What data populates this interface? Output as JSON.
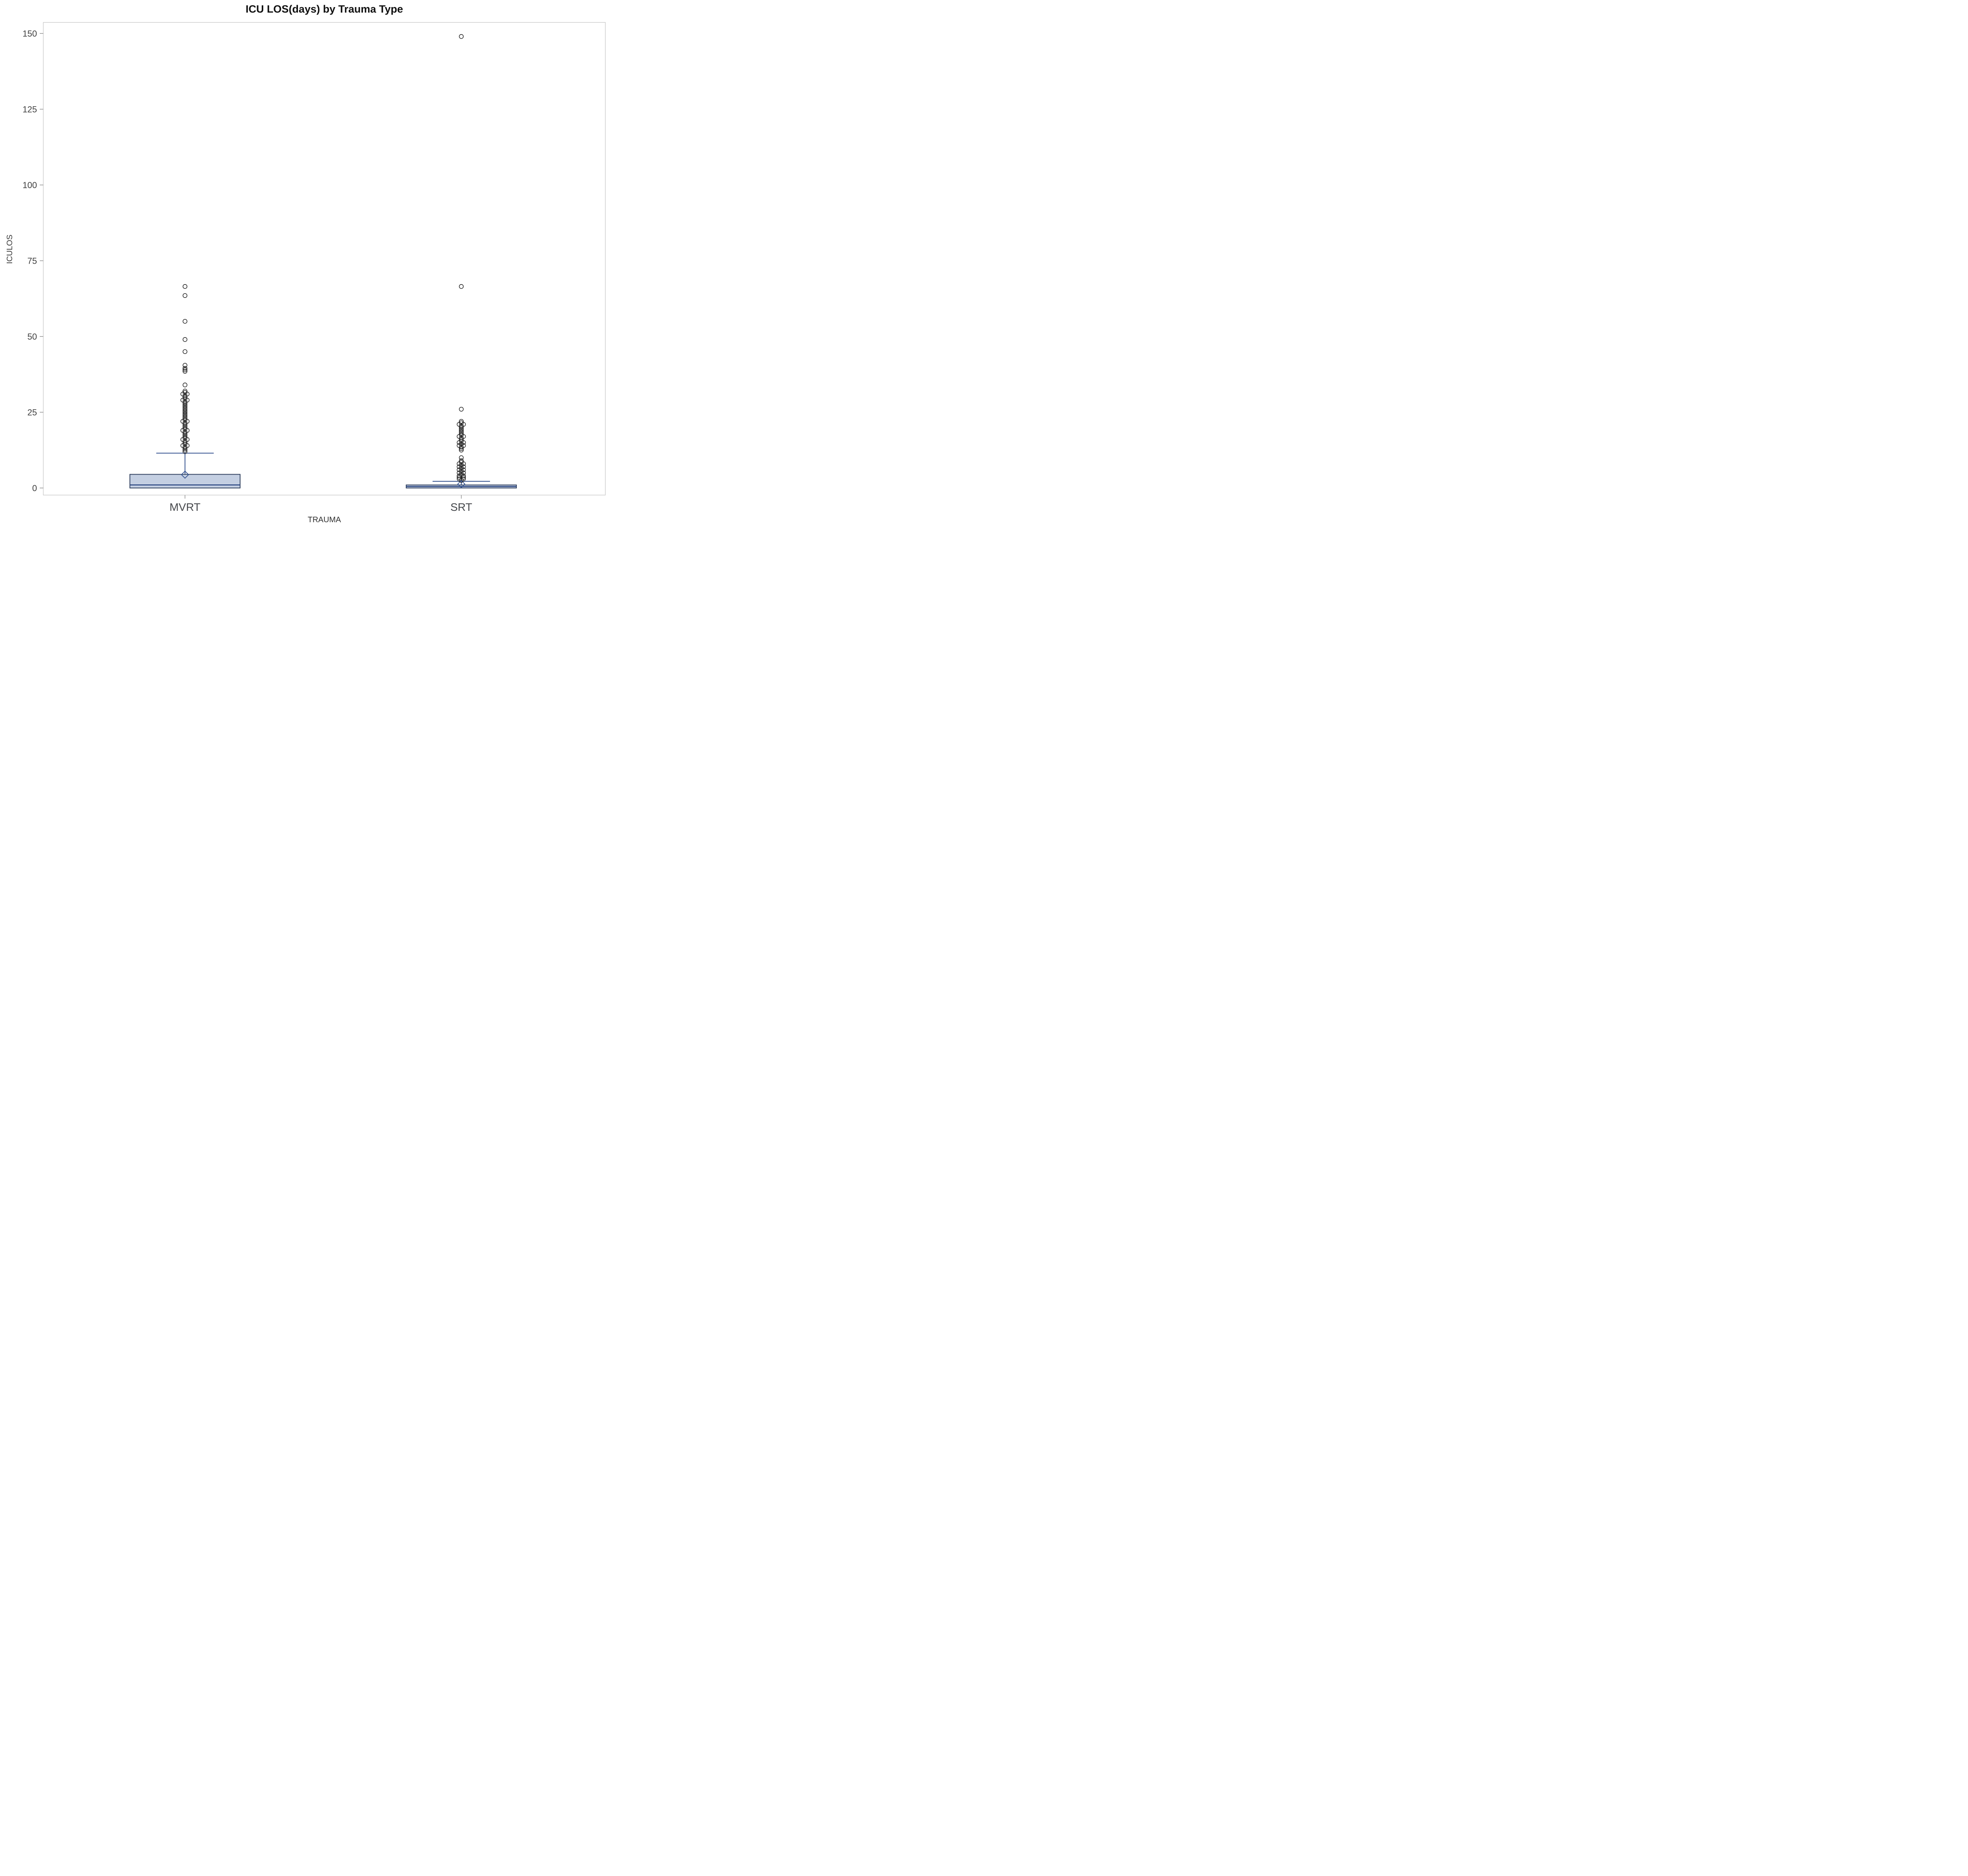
{
  "chart_data": {
    "type": "boxplot",
    "title": "ICU LOS(days) by Trauma Type",
    "xlabel": "TRAUMA",
    "ylabel": "ICULOS",
    "ylim": [
      0,
      150
    ],
    "yticks": [
      0,
      25,
      50,
      75,
      100,
      125,
      150
    ],
    "grid": false,
    "legend": "none",
    "categories": [
      "MVRT",
      "SRT"
    ],
    "series": [
      {
        "name": "MVRT",
        "q1": 0,
        "median": 1,
        "q3": 4.5,
        "whisker_low": 0,
        "whisker_high": 11.5,
        "mean": 4.4,
        "outliers": [
          66.5,
          63.5,
          55,
          49,
          45,
          40.5,
          39.5,
          39,
          38.5,
          34,
          32,
          31.5,
          31,
          31,
          30.5,
          30,
          29.5,
          29,
          29,
          28.5,
          28,
          27.5,
          27,
          26.5,
          26,
          25.5,
          25,
          24.5,
          24,
          23.5,
          23,
          22.5,
          22,
          22,
          21.5,
          21,
          20.5,
          20,
          19.5,
          19,
          19,
          18.5,
          18,
          17.5,
          17,
          16.5,
          16,
          16,
          15.5,
          15,
          14.5,
          14,
          14,
          13.5,
          13,
          12.5,
          12
        ]
      },
      {
        "name": "SRT",
        "q1": 0,
        "median": 0.5,
        "q3": 1,
        "whisker_low": 0,
        "whisker_high": 2.2,
        "mean": 1.3,
        "outliers": [
          149,
          66.5,
          26,
          22,
          21.5,
          21,
          21,
          20.5,
          20,
          19.5,
          19,
          18.5,
          18,
          17.5,
          17,
          17,
          16.5,
          16,
          15.5,
          15,
          15,
          14.5,
          14,
          14,
          13.5,
          13,
          12.5,
          10,
          9,
          8.5,
          8,
          8,
          7.5,
          7,
          7,
          6.5,
          6,
          6,
          5.5,
          5,
          5,
          4.5,
          4,
          4,
          3.5,
          3.5,
          3,
          3,
          2.5
        ]
      }
    ],
    "colors": {
      "box_fill": "#c4cfe2",
      "box_stroke": "#31415f",
      "whisker": "#33518f",
      "median": "#27437f",
      "mean": "#33518f",
      "outlier": "#1a1a1a",
      "frame": "#c0c0c0",
      "tick": "#8f8f8f",
      "tick_label": "#3f3f3f",
      "category_label": "#46484c",
      "background": "#ffffff"
    }
  }
}
